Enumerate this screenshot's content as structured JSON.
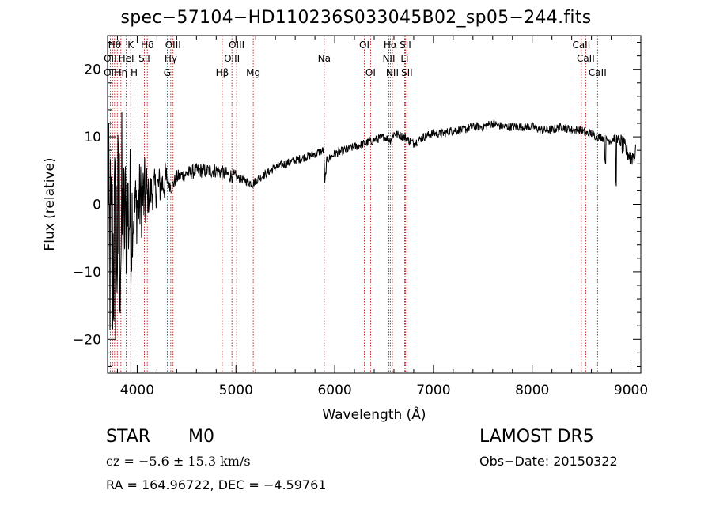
{
  "chart_data": {
    "type": "line",
    "title": "spec−57104−HD110236S033045B02_sp05−244.fits",
    "xlabel": "Wavelength (Å)",
    "ylabel": "Flux (relative)",
    "xlim": [
      3700,
      9100
    ],
    "ylim": [
      -25,
      25
    ],
    "xticks": [
      4000,
      5000,
      6000,
      7000,
      8000,
      9000
    ],
    "xtick_labels": [
      "4000",
      "5000",
      "6000",
      "7000",
      "8000",
      "9000"
    ],
    "yticks": [
      -20,
      -10,
      0,
      10,
      20
    ],
    "ytick_labels": [
      "−20",
      "−10",
      "0",
      "10",
      "20"
    ],
    "grid": false,
    "series": [
      {
        "color": "#000000",
        "x": [
          3700,
          3740,
          3780,
          3820,
          3860,
          3900,
          3950,
          4000,
          4050,
          4100,
          4150,
          4200,
          4250,
          4300,
          4350,
          4400,
          4500,
          4600,
          4700,
          4800,
          4900,
          5000,
          5100,
          5170,
          5200,
          5300,
          5400,
          5500,
          5600,
          5700,
          5800,
          5890,
          5900,
          5920,
          6000,
          6100,
          6200,
          6300,
          6400,
          6500,
          6563,
          6600,
          6700,
          6800,
          6900,
          7000,
          7100,
          7200,
          7300,
          7400,
          7500,
          7600,
          7700,
          7800,
          7900,
          8000,
          8100,
          8200,
          8300,
          8400,
          8500,
          8540,
          8600,
          8662,
          8700,
          8750,
          8800,
          8850,
          8900,
          8950,
          9000,
          9050
        ],
        "y": [
          -5,
          -8,
          -6,
          -4,
          -3,
          -1,
          -2,
          0,
          1,
          1,
          2,
          2.5,
          3,
          3.5,
          2.5,
          4,
          4.5,
          5,
          5,
          5,
          4.5,
          4,
          3.5,
          3,
          3.5,
          4.5,
          5.5,
          6,
          6.5,
          7,
          7.5,
          8,
          3,
          6.5,
          7.5,
          8,
          8.5,
          9,
          9.5,
          10,
          9.5,
          10.5,
          10,
          9,
          10,
          10.5,
          10.5,
          11,
          11,
          11.5,
          11.5,
          12,
          11.5,
          11.5,
          11.5,
          11.5,
          11,
          11,
          11.5,
          11,
          11,
          10.5,
          10.5,
          10,
          10,
          9.5,
          9.5,
          10,
          9,
          8,
          7,
          7.5
        ]
      }
    ],
    "lines": [
      {
        "x": 3727,
        "label": "OII"
      },
      {
        "x": 3750,
        "label": "Hη"
      },
      {
        "x": 3771,
        "label": "Hθ"
      },
      {
        "x": 3798,
        "label": "Hθ"
      },
      {
        "x": 3835,
        "label": "Hη"
      },
      {
        "x": 3889,
        "label": "HeI"
      },
      {
        "x": 3934,
        "label": "K"
      },
      {
        "x": 3969,
        "label": "H"
      },
      {
        "x": 4072,
        "label": "SII"
      },
      {
        "x": 4102,
        "label": "Hδ"
      },
      {
        "x": 4304,
        "label": "G"
      },
      {
        "x": 4340,
        "label": "Hγ"
      },
      {
        "x": 4363,
        "label": "OIII"
      },
      {
        "x": 4861,
        "label": "Hβ"
      },
      {
        "x": 4959,
        "label": "OIII"
      },
      {
        "x": 5007,
        "label": "OIII"
      },
      {
        "x": 5175,
        "label": "Mg"
      },
      {
        "x": 5894,
        "label": "Na"
      },
      {
        "x": 6300,
        "label": "OI"
      },
      {
        "x": 6363,
        "label": "OI"
      },
      {
        "x": 6548,
        "label": "NII"
      },
      {
        "x": 6563,
        "label": "Hα"
      },
      {
        "x": 6584,
        "label": "NII"
      },
      {
        "x": 6708,
        "label": "Li"
      },
      {
        "x": 6716,
        "label": "SII"
      },
      {
        "x": 6731,
        "label": "SII"
      },
      {
        "x": 8498,
        "label": "CaII"
      },
      {
        "x": 8542,
        "label": "CaII"
      },
      {
        "x": 8662,
        "label": "CaII"
      }
    ],
    "line_labels": [
      {
        "text": "Hθ",
        "row": 0,
        "x": 3771
      },
      {
        "text": "K",
        "row": 0,
        "x": 3934
      },
      {
        "text": "Hδ",
        "row": 0,
        "x": 4102
      },
      {
        "text": "OIII",
        "row": 0,
        "x": 4363
      },
      {
        "text": "OIII",
        "row": 0,
        "x": 5007
      },
      {
        "text": "OI",
        "row": 0,
        "x": 6300
      },
      {
        "text": "Hα",
        "row": 0,
        "x": 6563
      },
      {
        "text": "SII",
        "row": 0,
        "x": 6716
      },
      {
        "text": "CaII",
        "row": 0,
        "x": 8498
      },
      {
        "text": "OII",
        "row": 1,
        "x": 3727
      },
      {
        "text": "HeI",
        "row": 1,
        "x": 3889
      },
      {
        "text": "SII",
        "row": 1,
        "x": 4072
      },
      {
        "text": "Hγ",
        "row": 1,
        "x": 4340
      },
      {
        "text": "OIII",
        "row": 1,
        "x": 4959
      },
      {
        "text": "Na",
        "row": 1,
        "x": 5894
      },
      {
        "text": "NII",
        "row": 1,
        "x": 6548
      },
      {
        "text": "Li",
        "row": 1,
        "x": 6708
      },
      {
        "text": "CaII",
        "row": 1,
        "x": 8542
      },
      {
        "text": "OII",
        "row": 2,
        "x": 3727
      },
      {
        "text": "Hη",
        "row": 2,
        "x": 3835
      },
      {
        "text": "H",
        "row": 2,
        "x": 3969
      },
      {
        "text": "G",
        "row": 2,
        "x": 4304
      },
      {
        "text": "Hβ",
        "row": 2,
        "x": 4861
      },
      {
        "text": "Mg",
        "row": 2,
        "x": 5175
      },
      {
        "text": "OI",
        "row": 2,
        "x": 6363
      },
      {
        "text": "NII",
        "row": 2,
        "x": 6584
      },
      {
        "text": "SII",
        "row": 2,
        "x": 6731
      },
      {
        "text": "CaII",
        "row": 2,
        "x": 8662
      }
    ]
  },
  "info": {
    "object_class": "STAR",
    "subclass": "M0",
    "survey": "LAMOST DR5",
    "cz": "cz = −5.6 ± 15.3 km/s",
    "obs_date": "Obs−Date: 20150322",
    "radec": "RA = 164.96722, DEC =  −4.59761"
  },
  "colors": {
    "spectrum": "#000000",
    "line_markers": "#b00000",
    "axes": "#000000",
    "background": "#ffffff"
  }
}
